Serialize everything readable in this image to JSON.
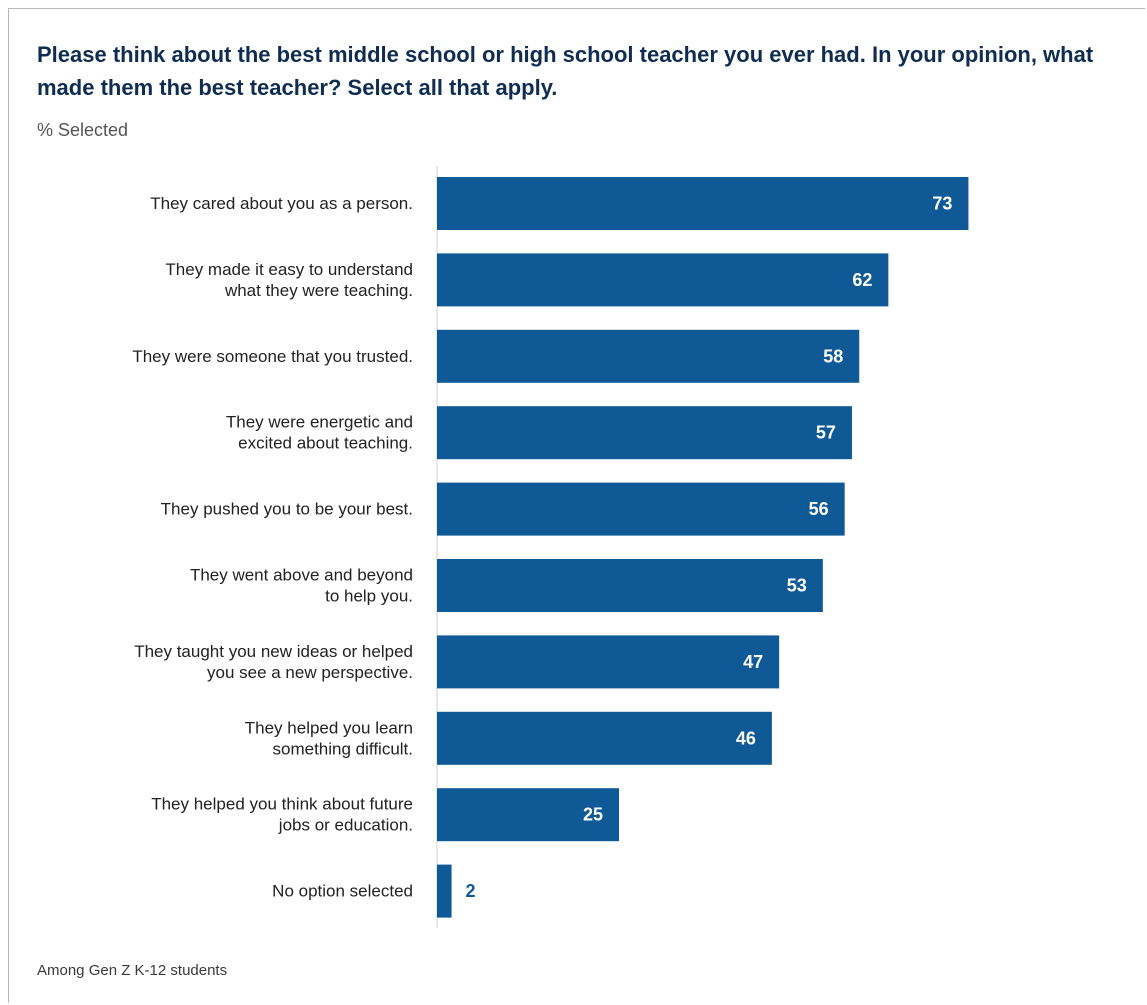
{
  "chart_data": {
    "type": "bar",
    "orientation": "horizontal",
    "title": "Please think about the best middle school or high school teacher you ever had. In your opinion, what made them the best teacher? Select all that apply.",
    "subtitle": "% Selected",
    "categories": [
      [
        "They cared about you as a person."
      ],
      [
        "They made it easy to understand",
        "what they were teaching."
      ],
      [
        "They were someone that you trusted."
      ],
      [
        "They were energetic and",
        "excited about teaching."
      ],
      [
        "They pushed you to be your best."
      ],
      [
        "They went above and beyond",
        "to help you."
      ],
      [
        "They taught you new ideas or helped",
        "you see a new perspective."
      ],
      [
        "They helped you learn",
        "something difficult."
      ],
      [
        "They helped you think about future",
        "jobs or education."
      ],
      [
        "No option selected"
      ]
    ],
    "values": [
      73,
      62,
      58,
      57,
      56,
      53,
      47,
      46,
      25,
      2
    ],
    "xlim": [
      0,
      100
    ],
    "data_labels": true,
    "grid": false,
    "legend": "none",
    "bar_color": "#0f5a96",
    "note": "Among Gen Z K-12 students"
  }
}
